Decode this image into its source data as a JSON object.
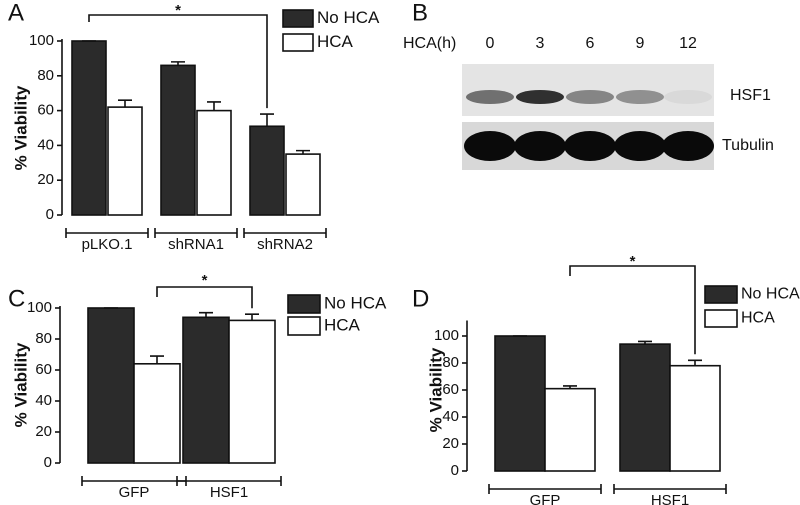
{
  "chart_data": [
    {
      "type": "bar",
      "panel": "A",
      "ylabel": "% Viability",
      "categories": [
        "pLKO.1",
        "shRNA1",
        "shRNA2"
      ],
      "series": [
        {
          "name": "No HCA",
          "color": "#2b2b2b",
          "values": [
            100,
            86,
            51
          ],
          "errors": [
            0,
            2,
            7
          ]
        },
        {
          "name": "HCA",
          "color": "#ffffff",
          "values": [
            62,
            60,
            35
          ],
          "errors": [
            4,
            5,
            2
          ]
        }
      ],
      "ylim": [
        0,
        100
      ],
      "yticks": [
        0,
        20,
        40,
        60,
        80,
        100
      ],
      "annotations": [
        "*"
      ]
    },
    {
      "type": "blot",
      "panel": "B",
      "xlabel": "HCA(h)",
      "lanes": [
        0,
        3,
        6,
        9,
        12
      ],
      "bands": [
        "HSF1",
        "Tubulin"
      ]
    },
    {
      "type": "bar",
      "panel": "C",
      "ylabel": "% Viability",
      "categories": [
        "GFP",
        "HSF1"
      ],
      "series": [
        {
          "name": "No HCA",
          "color": "#2b2b2b",
          "values": [
            100,
            94
          ],
          "errors": [
            0,
            3
          ]
        },
        {
          "name": "HCA",
          "color": "#ffffff",
          "values": [
            64,
            92
          ],
          "errors": [
            5,
            4
          ]
        }
      ],
      "ylim": [
        0,
        100
      ],
      "yticks": [
        0,
        20,
        40,
        60,
        80,
        100
      ],
      "annotations": [
        "*"
      ]
    },
    {
      "type": "bar",
      "panel": "D",
      "ylabel": "% Viability",
      "categories": [
        "GFP",
        "HSF1"
      ],
      "series": [
        {
          "name": "No HCA",
          "color": "#2b2b2b",
          "values": [
            100,
            94
          ],
          "errors": [
            0,
            2
          ]
        },
        {
          "name": "HCA",
          "color": "#ffffff",
          "values": [
            61,
            78
          ],
          "errors": [
            2,
            4
          ]
        }
      ],
      "ylim": [
        0,
        110
      ],
      "yticks": [
        0,
        20,
        40,
        60,
        80,
        100
      ],
      "annotations": [
        "*"
      ]
    }
  ]
}
